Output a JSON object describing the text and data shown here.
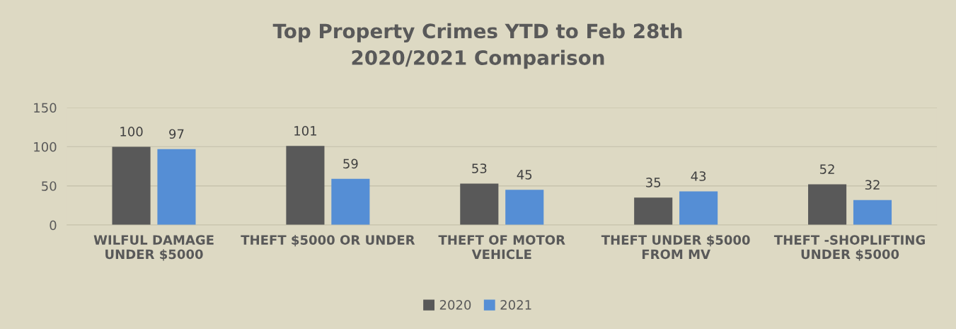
{
  "chart_data": {
    "type": "bar",
    "title": "Top Property Crimes YTD to Feb 28th\n2020/2021 Comparison",
    "categories": [
      "WILFUL DAMAGE\nUNDER $5000",
      "THEFT $5000 OR UNDER",
      "THEFT OF MOTOR\nVEHICLE",
      "THEFT UNDER $5000\nFROM MV",
      "THEFT -SHOPLIFTING\nUNDER $5000"
    ],
    "series": [
      {
        "name": "2020",
        "color": "#595959",
        "values": [
          100,
          101,
          53,
          35,
          52
        ]
      },
      {
        "name": "2021",
        "color": "#558ed5",
        "values": [
          97,
          59,
          45,
          43,
          32
        ]
      }
    ],
    "ylim": [
      0,
      150
    ],
    "yticks": [
      0,
      50,
      100,
      150
    ],
    "grid": "y",
    "legend": "bottom",
    "data_labels": true
  }
}
